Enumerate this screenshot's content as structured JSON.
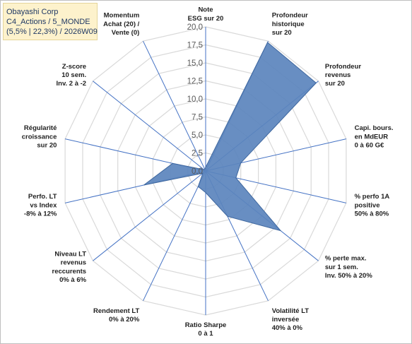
{
  "title_lines": [
    "Obayashi Corp",
    "C4_Actions / 5_MONDE",
    "(5,5% | 22,3%) / 2026W09"
  ],
  "chart_data": {
    "type": "radar",
    "rmin": 0,
    "rmax": 20,
    "tick_values": [
      0,
      2.5,
      5,
      7.5,
      10,
      12.5,
      15,
      17.5,
      20
    ],
    "tick_labels": [
      "0,0",
      "2,5",
      "5,0",
      "7,5",
      "10,0",
      "12,5",
      "15,0",
      "17,5",
      "20,0"
    ],
    "grid": true,
    "axes": [
      {
        "label": [
          "Note",
          "ESG sur 20"
        ],
        "value": 0.5
      },
      {
        "label": [
          "Profondeur",
          "historique",
          "sur 20"
        ],
        "value": 19.8
      },
      {
        "label": [
          "Profondeur",
          "revenus",
          "sur 20"
        ],
        "value": 19.6
      },
      {
        "label": [
          "Capi. bours.",
          "en MdEUR",
          "0 à 60 G€"
        ],
        "value": 5.0
      },
      {
        "label": [
          "% perfo 1A",
          "positive",
          "50% à 80%"
        ],
        "value": 4.3
      },
      {
        "label": [
          "% perte max.",
          "sur 1 sem.",
          "Inv. 50% à 20%"
        ],
        "value": 13.3
      },
      {
        "label": [
          "Volatilité LT",
          "inversée",
          "40% à 0%"
        ],
        "value": 7.0
      },
      {
        "label": [
          "Ratio Sharpe",
          "0 à 1"
        ],
        "value": 3.0
      },
      {
        "label": [
          "Rendement LT",
          "0% à 20%"
        ],
        "value": 2.4
      },
      {
        "label": [
          "Niveau LT",
          "revenus",
          "reccurents",
          "0% à 6%"
        ],
        "value": 0.5
      },
      {
        "label": [
          "Perfo. LT",
          "vs Index",
          "-8% à 12%"
        ],
        "value": 8.8
      },
      {
        "label": [
          "Régularité",
          "croissance",
          "sur 20"
        ],
        "value": 4.7
      },
      {
        "label": [
          "Z-score",
          "10 sem.",
          "Inv. 2 à -2"
        ],
        "value": 0.3
      },
      {
        "label": [
          "Momentum",
          "Achat (20) /",
          "Vente (0)"
        ],
        "value": 0.3
      }
    ],
    "colors": {
      "fill": "#5b84bd",
      "stroke": "#3d669e",
      "grid": "#d9d9d9",
      "axis": "#4472c4"
    }
  }
}
